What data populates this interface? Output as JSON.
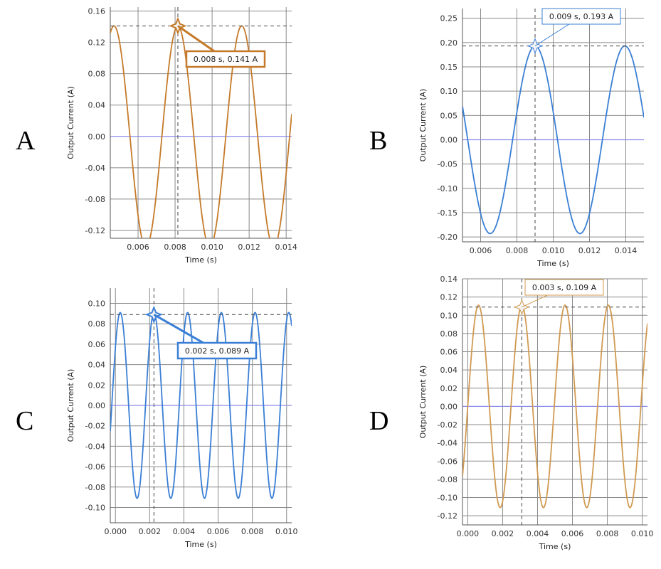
{
  "panels": [
    {
      "letter": "A"
    },
    {
      "letter": "B"
    },
    {
      "letter": "C"
    },
    {
      "letter": "D"
    }
  ],
  "colors": {
    "orange": "#c47a2a",
    "blue": "#3a7fd5",
    "tan": "#d09a52",
    "zero_line": "#8a8aea",
    "grid": "#8a8a8a"
  },
  "chart_data": [
    {
      "type": "line",
      "panel": "A",
      "title": "",
      "xlabel": "Time (s)",
      "ylabel": "Output Current (A)",
      "xlim": [
        0.0045,
        0.0143
      ],
      "ylim": [
        -0.13,
        0.165
      ],
      "xticks": [
        0.006,
        0.008,
        0.01,
        0.012,
        0.014
      ],
      "xtick_labels": [
        "0.006",
        "0.008",
        "0.010",
        "0.012",
        "0.014"
      ],
      "yticks": [
        -0.12,
        -0.08,
        -0.04,
        0.0,
        0.04,
        0.08,
        0.12,
        0.16
      ],
      "ytick_labels": [
        "-0.12",
        "-0.08",
        "-0.04",
        "0.00",
        "0.04",
        "0.08",
        "0.12",
        "0.16"
      ],
      "series": [
        {
          "name": "Output Current",
          "color": "orange",
          "amplitude": 0.141,
          "period": 0.00345,
          "peak_t": 0.00815
        }
      ],
      "marker": {
        "x": 0.00815,
        "y": 0.141,
        "label": "0.008 s, 0.141 A"
      }
    },
    {
      "type": "line",
      "panel": "B",
      "title": "",
      "xlabel": "Time (s)",
      "ylabel": "Output Current (A)",
      "xlim": [
        0.005,
        0.015
      ],
      "ylim": [
        -0.21,
        0.27
      ],
      "xticks": [
        0.006,
        0.008,
        0.01,
        0.012,
        0.014
      ],
      "xtick_labels": [
        "0.006",
        "0.008",
        "0.010",
        "0.012",
        "0.014"
      ],
      "yticks": [
        -0.2,
        -0.15,
        -0.1,
        -0.05,
        0.0,
        0.05,
        0.1,
        0.15,
        0.2,
        0.25
      ],
      "ytick_labels": [
        "-0.20",
        "-0.15",
        "-0.10",
        "-0.05",
        "0.00",
        "0.05",
        "0.10",
        "0.15",
        "0.20",
        "0.25"
      ],
      "series": [
        {
          "name": "Output Current",
          "color": "blue",
          "amplitude": 0.193,
          "period": 0.00495,
          "peak_t": 0.009
        }
      ],
      "marker": {
        "x": 0.009,
        "y": 0.193,
        "label": "0.009 s, 0.193 A"
      }
    },
    {
      "type": "line",
      "panel": "C",
      "title": "",
      "xlabel": "Time (s)",
      "ylabel": "Output Current (A)",
      "xlim": [
        -0.0003,
        0.0103
      ],
      "ylim": [
        -0.115,
        0.115
      ],
      "xticks": [
        0.0,
        0.002,
        0.004,
        0.006,
        0.008,
        0.01
      ],
      "xtick_labels": [
        "0.000",
        "0.002",
        "0.004",
        "0.006",
        "0.008",
        "0.010"
      ],
      "yticks": [
        -0.1,
        -0.08,
        -0.06,
        -0.04,
        -0.02,
        0.0,
        0.02,
        0.04,
        0.06,
        0.08,
        0.1
      ],
      "ytick_labels": [
        "-0.10",
        "-0.08",
        "-0.06",
        "-0.04",
        "-0.02",
        "0.00",
        "0.02",
        "0.04",
        "0.06",
        "0.08",
        "0.10"
      ],
      "series": [
        {
          "name": "Output Current",
          "color": "blue",
          "amplitude": 0.091,
          "period": 0.00197,
          "peak_t": 0.00225
        }
      ],
      "marker": {
        "x": 0.00225,
        "y": 0.089,
        "label": "0.002 s, 0.089 A"
      }
    },
    {
      "type": "line",
      "panel": "D",
      "title": "",
      "xlabel": "Time (s)",
      "ylabel": "Output Current (A)",
      "xlim": [
        -0.0003,
        0.0103
      ],
      "ylim": [
        -0.13,
        0.14
      ],
      "xticks": [
        0.0,
        0.002,
        0.004,
        0.006,
        0.008,
        0.01
      ],
      "xtick_labels": [
        "0.000",
        "0.002",
        "0.004",
        "0.006",
        "0.008",
        "0.010"
      ],
      "yticks": [
        -0.12,
        -0.1,
        -0.08,
        -0.06,
        -0.04,
        -0.02,
        0.0,
        0.02,
        0.04,
        0.06,
        0.08,
        0.1,
        0.12,
        0.14
      ],
      "ytick_labels": [
        "-0.12",
        "-0.10",
        "-0.08",
        "-0.06",
        "-0.04",
        "-0.02",
        "0.00",
        "0.02",
        "0.04",
        "0.06",
        "0.08",
        "0.10",
        "0.12",
        "0.14"
      ],
      "series": [
        {
          "name": "Output Current",
          "color": "tan",
          "amplitude": 0.111,
          "period": 0.00248,
          "peak_t": 0.0031
        }
      ],
      "marker": {
        "x": 0.0031,
        "y": 0.109,
        "label": "0.003 s, 0.109 A"
      }
    }
  ]
}
